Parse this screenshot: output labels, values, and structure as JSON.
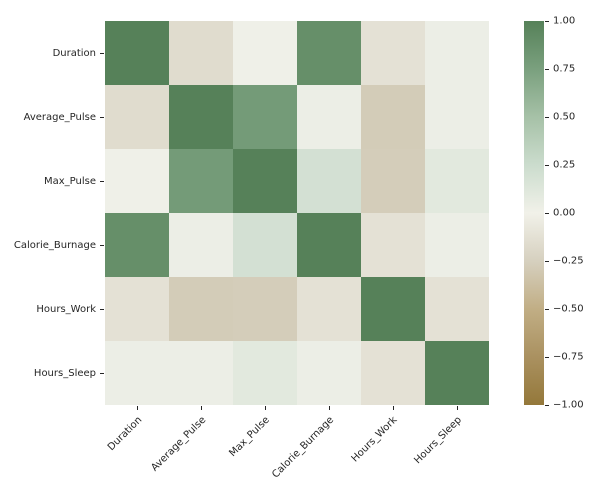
{
  "chart_data": {
    "type": "heatmap",
    "title": "",
    "xlabel": "",
    "ylabel": "",
    "categories": [
      "Duration",
      "Average_Pulse",
      "Max_Pulse",
      "Calorie_Burnage",
      "Hours_Work",
      "Hours_Sleep"
    ],
    "matrix": [
      [
        1.0,
        -0.16,
        0.01,
        0.89,
        -0.12,
        0.03
      ],
      [
        -0.16,
        1.0,
        0.79,
        0.03,
        -0.28,
        0.03
      ],
      [
        0.01,
        0.79,
        1.0,
        0.2,
        -0.27,
        0.1
      ],
      [
        0.89,
        0.03,
        0.2,
        1.0,
        -0.12,
        0.03
      ],
      [
        -0.12,
        -0.28,
        -0.27,
        -0.12,
        1.0,
        -0.12
      ],
      [
        0.03,
        0.03,
        0.1,
        0.03,
        -0.12,
        1.0
      ]
    ],
    "vmin": -1,
    "vmax": 1,
    "grid": false,
    "legend_position": "right",
    "colorbar_ticks": [
      "1.00",
      "0.75",
      "0.50",
      "0.25",
      "0.00",
      "−0.25",
      "−0.50",
      "−0.75",
      "−1.00"
    ],
    "colorbar_tick_values": [
      1.0,
      0.75,
      0.5,
      0.25,
      0.0,
      -0.25,
      -0.5,
      -0.75,
      -1.0
    ],
    "palette": [
      {
        "v": 1.0,
        "c": "#568159"
      },
      {
        "v": 0.75,
        "c": "#7aa07e"
      },
      {
        "v": 0.5,
        "c": "#a6c1a7"
      },
      {
        "v": 0.25,
        "c": "#cbdccd"
      },
      {
        "v": 0.0,
        "c": "#f1f1e9"
      },
      {
        "v": -0.25,
        "c": "#d6d0bf"
      },
      {
        "v": -0.5,
        "c": "#c1ae85"
      },
      {
        "v": -0.75,
        "c": "#aa9160"
      },
      {
        "v": -1.0,
        "c": "#94783a"
      }
    ],
    "colors": {
      "background": "#ffffff",
      "tick_text": "#262626",
      "positive_extreme": "#568159",
      "negative_extreme": "#94783a",
      "center": "#f1f1e9"
    }
  }
}
